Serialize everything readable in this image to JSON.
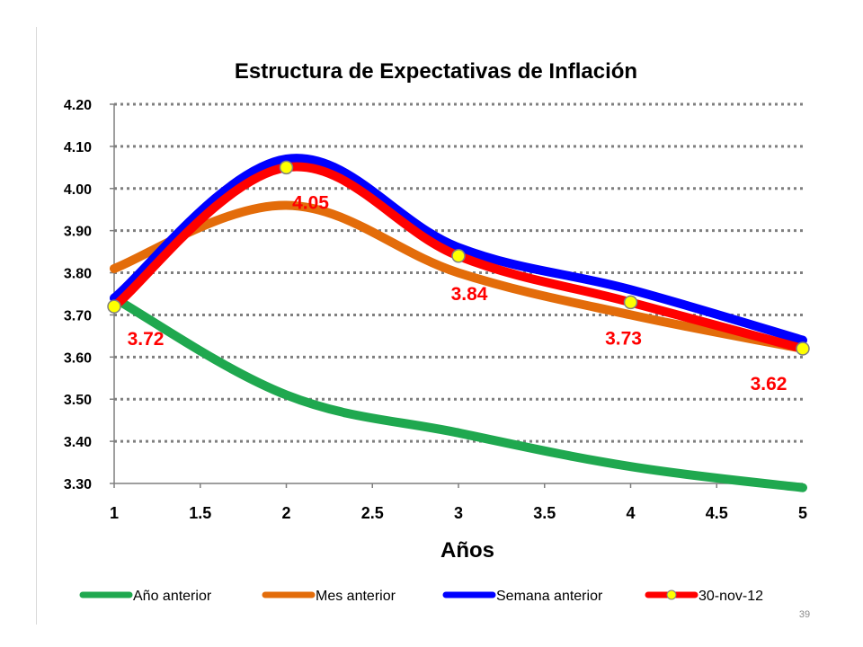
{
  "page": {
    "number": "39"
  },
  "colors": {
    "year_ago": "#1fa84f",
    "month_ago": "#e36c0a",
    "week_ago": "#0000ff",
    "current": "#ff0000",
    "marker_fill": "#ffff00",
    "marker_stroke": "#7f7f7f",
    "label": "#ff0000",
    "grid": "#7f7f7f"
  },
  "chart_data": {
    "type": "line",
    "title": "Estructura de Expectativas de Inflación",
    "xlabel": "Años",
    "ylabel": "",
    "xlim": [
      1,
      5
    ],
    "ylim": [
      3.3,
      4.2
    ],
    "x_ticks": [
      "1",
      "1.5",
      "2",
      "2.5",
      "3",
      "3.5",
      "4",
      "4.5",
      "5"
    ],
    "y_ticks": [
      "4.20",
      "4.10",
      "4.00",
      "3.90",
      "3.80",
      "3.70",
      "3.60",
      "3.50",
      "3.40",
      "3.30"
    ],
    "grid": "horizontal dotted",
    "legend_position": "bottom",
    "series": [
      {
        "name": "Año anterior",
        "color": "#1fa84f",
        "markers": false,
        "x": [
          1,
          2,
          3,
          4,
          5
        ],
        "y": [
          3.74,
          3.51,
          3.42,
          3.34,
          3.29
        ]
      },
      {
        "name": "Mes anterior",
        "color": "#e36c0a",
        "markers": false,
        "x": [
          1,
          2,
          3,
          4,
          5
        ],
        "y": [
          3.81,
          3.96,
          3.8,
          3.7,
          3.62
        ]
      },
      {
        "name": "Semana anterior",
        "color": "#0000ff",
        "markers": false,
        "x": [
          1,
          2,
          3,
          4,
          5
        ],
        "y": [
          3.74,
          4.07,
          3.86,
          3.76,
          3.64
        ]
      },
      {
        "name": "30-nov-12",
        "color": "#ff0000",
        "markers": true,
        "x": [
          1,
          2,
          3,
          4,
          5
        ],
        "y": [
          3.72,
          4.05,
          3.84,
          3.73,
          3.62
        ],
        "data_labels": [
          "3.72",
          "4.05",
          "3.84",
          "3.73",
          "3.62"
        ]
      }
    ]
  }
}
